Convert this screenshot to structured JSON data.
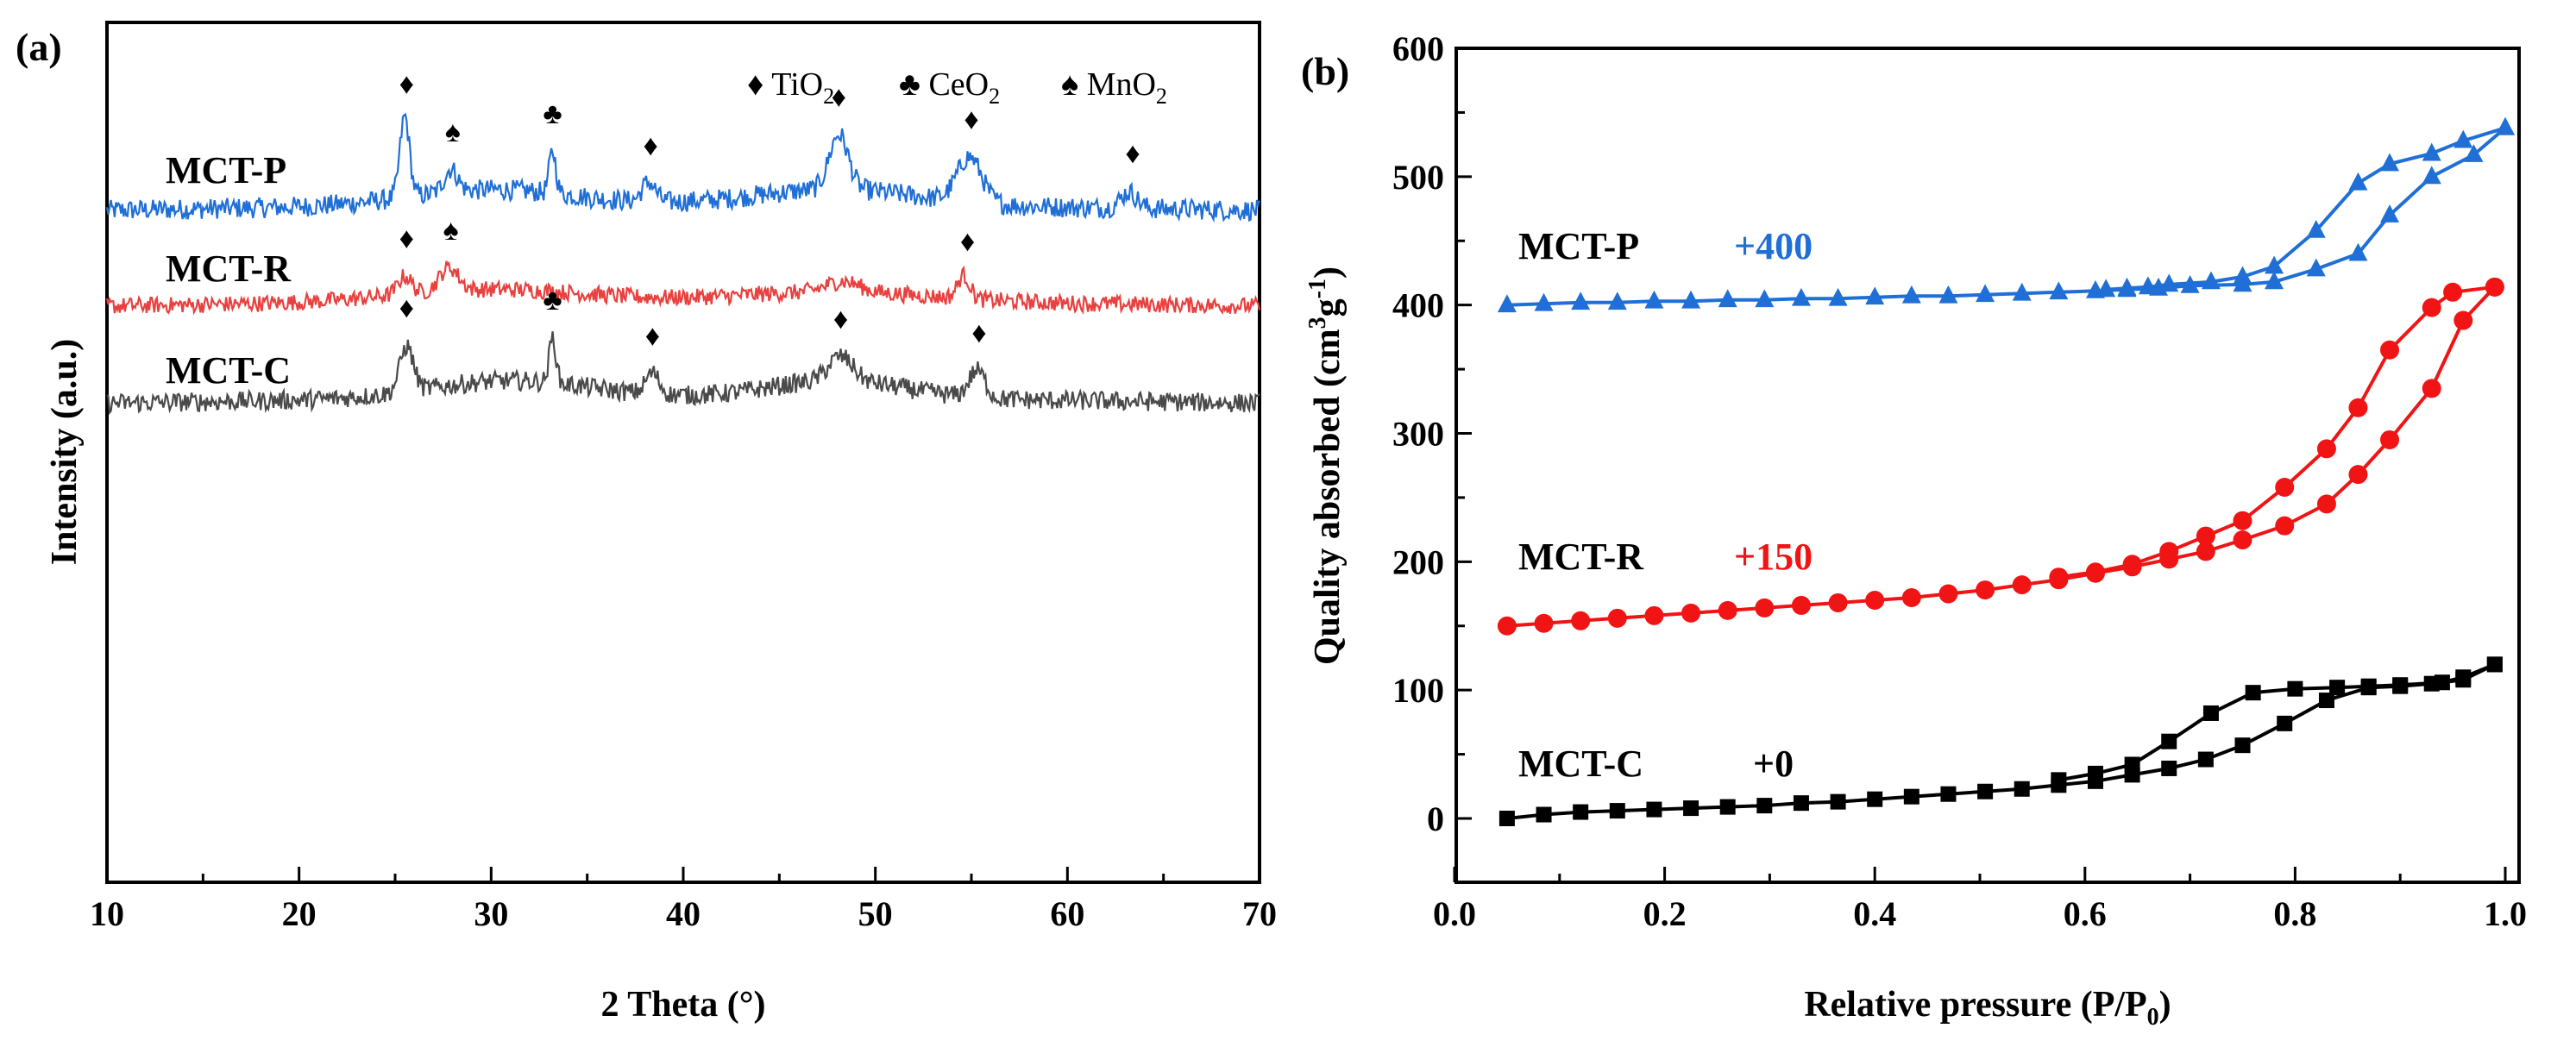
{
  "chart_data": [
    {
      "type": "line",
      "panel_label": "(a)",
      "xlabel": "2 Theta (°)",
      "ylabel": "Intensity (a.u.)",
      "xlim": [
        10,
        70
      ],
      "xticks": [
        10,
        20,
        30,
        40,
        50,
        60,
        70
      ],
      "legend": [
        {
          "symbol": "♦",
          "name": "TiO",
          "sub": "2"
        },
        {
          "symbol": "♣",
          "name": "CeO",
          "sub": "2"
        },
        {
          "symbol": "♠",
          "name": "MnO",
          "sub": "2"
        }
      ],
      "series": [
        {
          "name": "MCT-P",
          "color": "#1f6fd6",
          "baseline": 0.0,
          "label_x": 11.8,
          "peaks": [
            [
              25.5,
              1.25,
              0.35
            ],
            [
              27.9,
              0.35,
              0.5
            ],
            [
              33.2,
              0.65,
              0.25
            ],
            [
              38.2,
              0.3,
              0.5
            ],
            [
              48.1,
              0.85,
              0.7
            ],
            [
              54.9,
              0.7,
              0.9
            ],
            [
              63.2,
              0.25,
              0.6
            ]
          ],
          "hump": [
            [
              30,
              0.25,
              6
            ],
            [
              48,
              0.25,
              6
            ]
          ],
          "markers": [
            [
              25.6,
              "♦"
            ],
            [
              28.0,
              "♠"
            ],
            [
              33.2,
              "♣"
            ],
            [
              38.3,
              "♦"
            ],
            [
              48.1,
              "♦"
            ],
            [
              55.0,
              "♦"
            ],
            [
              63.4,
              "♦"
            ]
          ]
        },
        {
          "name": "MCT-R",
          "color": "#e8413f",
          "baseline": 0.0,
          "label_x": 11.8,
          "peaks": [
            [
              25.5,
              0.35,
              0.5
            ],
            [
              27.8,
              0.45,
              0.7
            ],
            [
              48.3,
              0.2,
              1.2
            ],
            [
              54.6,
              0.45,
              0.45
            ]
          ],
          "hump": [
            [
              30,
              0.25,
              7
            ],
            [
              48,
              0.2,
              7
            ]
          ],
          "markers": [
            [
              25.6,
              "♦"
            ],
            [
              27.9,
              "♠"
            ],
            [
              54.8,
              "♦"
            ]
          ]
        },
        {
          "name": "MCT-C",
          "color": "#4a4a4a",
          "baseline": 0.0,
          "label_x": 11.8,
          "peaks": [
            [
              25.6,
              0.75,
              0.5
            ],
            [
              33.2,
              0.75,
              0.25
            ],
            [
              38.4,
              0.35,
              0.5
            ],
            [
              48.2,
              0.4,
              0.9
            ],
            [
              55.3,
              0.45,
              0.6
            ]
          ],
          "hump": [
            [
              31,
              0.3,
              6
            ],
            [
              48,
              0.3,
              5
            ]
          ],
          "markers": [
            [
              25.6,
              "♦"
            ],
            [
              33.2,
              "♣"
            ],
            [
              38.4,
              "♦"
            ],
            [
              48.2,
              "♦"
            ],
            [
              55.4,
              "♦"
            ]
          ]
        }
      ]
    },
    {
      "type": "line",
      "panel_label": "(b)",
      "xlabel": "Relative pressure (P/P",
      "xlabel_sub": "0",
      "xlabel_end": ")",
      "ylabel": "Quality absorbed (cm",
      "ylabel_sup1": "3",
      "ylabel_mid": "g",
      "ylabel_sup2": "-1",
      "ylabel_end": ")",
      "xlim": [
        0.0,
        1.0
      ],
      "ylim": [
        -50,
        600
      ],
      "xticks": [
        "0.0",
        "0.2",
        "0.4",
        "0.6",
        "0.8",
        "1.0"
      ],
      "yticks": [
        "0",
        "100",
        "200",
        "300",
        "400",
        "500",
        "600"
      ],
      "series": [
        {
          "name": "MCT-P",
          "offset": "+400",
          "color": "#1f6fd6",
          "marker": "triangle",
          "adsorption": [
            [
              0.05,
              400
            ],
            [
              0.085,
              401
            ],
            [
              0.12,
              402
            ],
            [
              0.155,
              402
            ],
            [
              0.19,
              403
            ],
            [
              0.225,
              403
            ],
            [
              0.26,
              404
            ],
            [
              0.295,
              404
            ],
            [
              0.33,
              405
            ],
            [
              0.365,
              405
            ],
            [
              0.4,
              406
            ],
            [
              0.435,
              407
            ],
            [
              0.47,
              407
            ],
            [
              0.505,
              408
            ],
            [
              0.54,
              409
            ],
            [
              0.575,
              410
            ],
            [
              0.61,
              411
            ],
            [
              0.64,
              412
            ],
            [
              0.67,
              413
            ],
            [
              0.7,
              415
            ],
            [
              0.75,
              416
            ],
            [
              0.78,
              418
            ],
            [
              0.82,
              428
            ],
            [
              0.86,
              440
            ],
            [
              0.89,
              470
            ],
            [
              0.93,
              500
            ],
            [
              0.97,
              517
            ],
            [
              1.0,
              538
            ]
          ],
          "desorption": [
            [
              1.0,
              538
            ],
            [
              0.96,
              528
            ],
            [
              0.93,
              518
            ],
            [
              0.89,
              510
            ],
            [
              0.86,
              495
            ],
            [
              0.82,
              458
            ],
            [
              0.78,
              430
            ],
            [
              0.75,
              422
            ],
            [
              0.72,
              418
            ],
            [
              0.68,
              416
            ],
            [
              0.66,
              414
            ],
            [
              0.64,
              413
            ],
            [
              0.62,
              412
            ]
          ]
        },
        {
          "name": "MCT-R",
          "offset": "+150",
          "color": "#f01414",
          "marker": "circle",
          "adsorption": [
            [
              0.05,
              150
            ],
            [
              0.085,
              152
            ],
            [
              0.12,
              154
            ],
            [
              0.155,
              156
            ],
            [
              0.19,
              158
            ],
            [
              0.225,
              160
            ],
            [
              0.26,
              162
            ],
            [
              0.295,
              164
            ],
            [
              0.33,
              166
            ],
            [
              0.365,
              168
            ],
            [
              0.4,
              170
            ],
            [
              0.435,
              172
            ],
            [
              0.47,
              175
            ],
            [
              0.505,
              178
            ],
            [
              0.54,
              182
            ],
            [
              0.575,
              186
            ],
            [
              0.61,
              191
            ],
            [
              0.645,
              196
            ],
            [
              0.68,
              202
            ],
            [
              0.715,
              208
            ],
            [
              0.75,
              217
            ],
            [
              0.79,
              228
            ],
            [
              0.83,
              245
            ],
            [
              0.86,
              268
            ],
            [
              0.89,
              295
            ],
            [
              0.93,
              335
            ],
            [
              0.96,
              388
            ],
            [
              0.99,
              414
            ]
          ],
          "desorption": [
            [
              0.99,
              414
            ],
            [
              0.95,
              410
            ],
            [
              0.93,
              398
            ],
            [
              0.89,
              365
            ],
            [
              0.86,
              320
            ],
            [
              0.83,
              288
            ],
            [
              0.79,
              258
            ],
            [
              0.75,
              232
            ],
            [
              0.715,
              220
            ],
            [
              0.68,
              208
            ],
            [
              0.645,
              198
            ],
            [
              0.61,
              192
            ],
            [
              0.575,
              188
            ]
          ]
        },
        {
          "name": "MCT-C",
          "offset": "+0",
          "color": "#000000",
          "marker": "square",
          "adsorption": [
            [
              0.05,
              0
            ],
            [
              0.085,
              3
            ],
            [
              0.12,
              5
            ],
            [
              0.155,
              6
            ],
            [
              0.19,
              7
            ],
            [
              0.225,
              8
            ],
            [
              0.26,
              9
            ],
            [
              0.295,
              10
            ],
            [
              0.33,
              12
            ],
            [
              0.365,
              13
            ],
            [
              0.4,
              15
            ],
            [
              0.435,
              17
            ],
            [
              0.47,
              19
            ],
            [
              0.505,
              21
            ],
            [
              0.54,
              23
            ],
            [
              0.575,
              26
            ],
            [
              0.61,
              29
            ],
            [
              0.645,
              34
            ],
            [
              0.68,
              39
            ],
            [
              0.715,
              46
            ],
            [
              0.75,
              57
            ],
            [
              0.79,
              74
            ],
            [
              0.83,
              92
            ],
            [
              0.87,
              102
            ],
            [
              0.9,
              103
            ],
            [
              0.93,
              105
            ],
            [
              0.96,
              108
            ],
            [
              0.99,
              120
            ]
          ],
          "desorption": [
            [
              0.99,
              120
            ],
            [
              0.96,
              110
            ],
            [
              0.94,
              106
            ],
            [
              0.9,
              104
            ],
            [
              0.87,
              103
            ],
            [
              0.84,
              102
            ],
            [
              0.8,
              101
            ],
            [
              0.76,
              98
            ],
            [
              0.72,
              82
            ],
            [
              0.68,
              60
            ],
            [
              0.645,
              42
            ],
            [
              0.61,
              35
            ],
            [
              0.575,
              30
            ]
          ]
        }
      ]
    }
  ]
}
